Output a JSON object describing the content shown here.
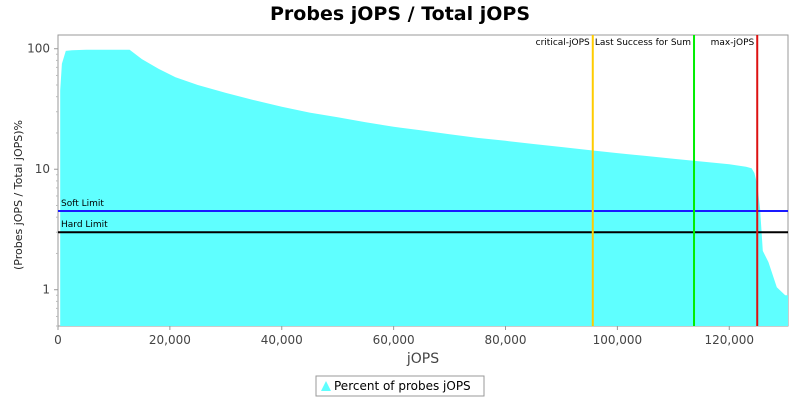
{
  "chart_data": {
    "type": "area",
    "title": "Probes jOPS / Total jOPS",
    "xlabel": "jOPS",
    "ylabel": "(Probes jOPS / Total jOPS)%",
    "xlim": [
      0,
      130500
    ],
    "ylim": [
      0.5,
      130
    ],
    "yscale": "log",
    "x_ticks": [
      0,
      20000,
      40000,
      60000,
      80000,
      100000,
      120000
    ],
    "x_tick_labels": [
      "0",
      "20,000",
      "40,000",
      "60,000",
      "80,000",
      "100,000",
      "120,000"
    ],
    "y_ticks": [
      1,
      10,
      100
    ],
    "y_tick_labels": [
      "1",
      "10",
      "100"
    ],
    "grid": false,
    "legend_position": "bottom",
    "series": [
      {
        "name": "Percent of probes jOPS",
        "color": "#5fffff",
        "x": [
          400,
          700,
          1400,
          2500,
          5000,
          8000,
          11000,
          12800,
          15000,
          18000,
          21000,
          25000,
          30000,
          35000,
          40000,
          45000,
          50000,
          55000,
          60000,
          65000,
          70000,
          75000,
          80000,
          85000,
          90000,
          95000,
          100000,
          105000,
          110000,
          115000,
          120000,
          123000,
          124000,
          124500,
          125000,
          125500,
          126000,
          127000,
          128500,
          130000,
          130500
        ],
        "y": [
          45,
          75,
          96,
          97,
          98,
          98,
          98,
          98,
          82,
          68,
          58,
          50,
          43,
          37.5,
          33,
          29.5,
          27,
          24.5,
          22.5,
          21,
          19.5,
          18.2,
          17.2,
          16.2,
          15.3,
          14.4,
          13.6,
          12.9,
          12.2,
          11.6,
          11,
          10.5,
          10.2,
          9.3,
          7.5,
          4.8,
          2.1,
          1.7,
          1.05,
          0.9,
          0.9
        ]
      }
    ],
    "reference_lines": [
      {
        "orientation": "vertical",
        "label": "critical-jOPS",
        "x": 95600,
        "color": "#ffcc00"
      },
      {
        "orientation": "vertical",
        "label": "Last Success for Sum",
        "x": 113700,
        "color": "#00ee00"
      },
      {
        "orientation": "vertical",
        "label": "max-jOPS",
        "x": 125000,
        "color": "#dd1111"
      },
      {
        "orientation": "horizontal",
        "label": "Soft Limit",
        "y": 4.5,
        "color": "#1a1aff"
      },
      {
        "orientation": "horizontal",
        "label": "Hard Limit",
        "y": 3,
        "color": "#000000"
      }
    ]
  }
}
